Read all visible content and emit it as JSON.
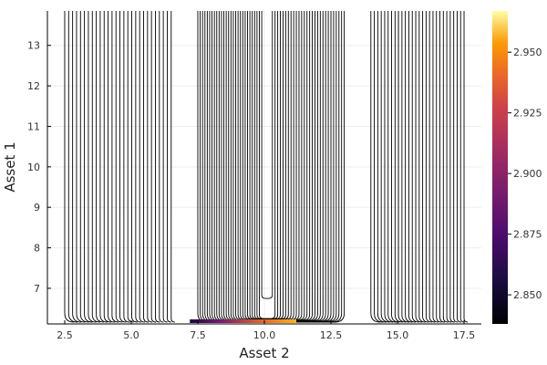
{
  "chart_data": {
    "type": "contour",
    "title": "",
    "xlabel": "Asset 2",
    "ylabel": "Asset 1",
    "xlim": [
      1.85,
      18.15
    ],
    "ylim": [
      6.12,
      13.85
    ],
    "x_ticks": [
      2.5,
      5.0,
      7.5,
      10.0,
      12.5,
      15.0,
      17.5
    ],
    "x_tick_labels": [
      "2.5",
      "5.0",
      "7.5",
      "10.0",
      "12.5",
      "15.0",
      "17.5"
    ],
    "y_ticks": [
      7,
      8,
      9,
      10,
      11,
      12,
      13
    ],
    "y_tick_labels": [
      "7",
      "8",
      "9",
      "10",
      "11",
      "12",
      "13"
    ],
    "grid": true,
    "colorbar": {
      "colormap": "inferno",
      "range": [
        2.838,
        2.967
      ],
      "ticks": [
        2.85,
        2.875,
        2.9,
        2.925,
        2.95
      ],
      "tick_labels": [
        "2.850",
        "2.875",
        "2.900",
        "2.925",
        "2.950"
      ]
    },
    "contour_bands": [
      {
        "x_outer_left": 2.5,
        "x_inner_left": 6.5
      },
      {
        "x_outer_left": 7.5,
        "x_inner_left": 9.9,
        "x_inner_right": 10.3,
        "x_outer_right": 13.0
      },
      {
        "x_outer_left": 14.0,
        "x_inner_left": 17.5
      }
    ],
    "highlight": {
      "x_start": 7.2,
      "x_end": 11.2,
      "colors": [
        "#1b0c41",
        "#781c6d",
        "#ed6925",
        "#fbb61a"
      ]
    }
  }
}
